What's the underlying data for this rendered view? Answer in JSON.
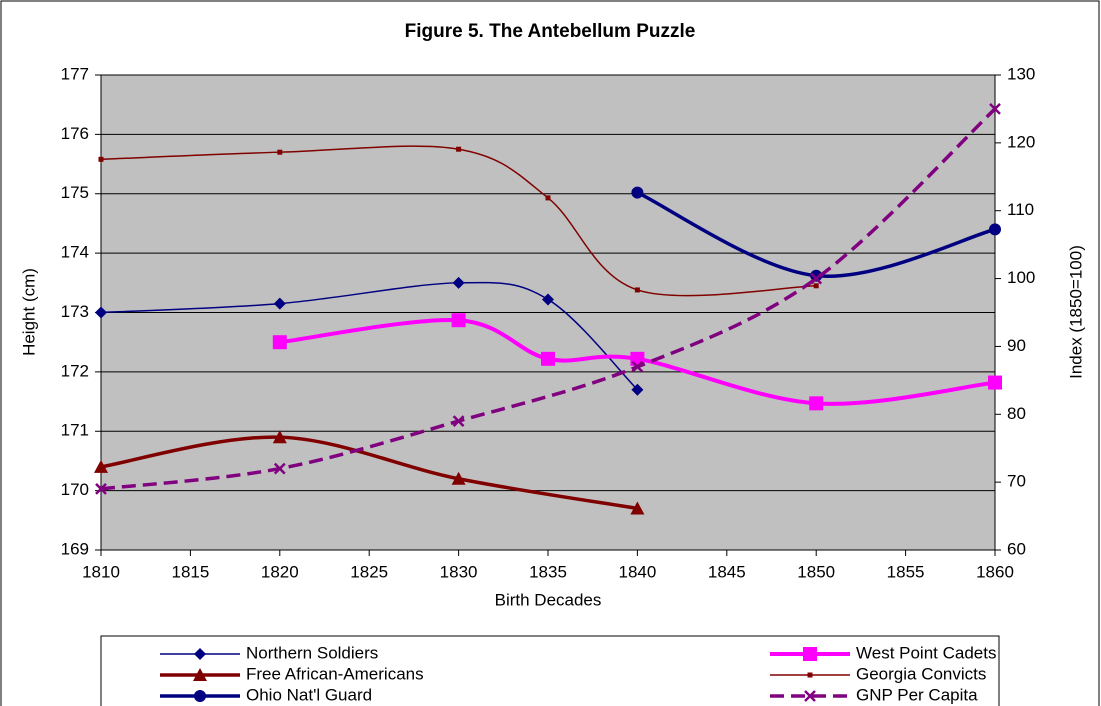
{
  "chart_data": {
    "type": "line",
    "title": "Figure 5. The Antebellum Puzzle",
    "xlabel": "Birth Decades",
    "ylabel": "Height (cm)",
    "y2label": "Index  (1850=100)",
    "xlim": [
      1810,
      1860
    ],
    "xticks": [
      1810,
      1815,
      1820,
      1825,
      1830,
      1835,
      1840,
      1845,
      1850,
      1855,
      1860
    ],
    "ylim": [
      169,
      177
    ],
    "yticks": [
      169,
      170,
      171,
      172,
      173,
      174,
      175,
      176,
      177
    ],
    "y2lim": [
      60,
      130
    ],
    "y2ticks": [
      60,
      70,
      80,
      90,
      100,
      110,
      120,
      130
    ],
    "grid": true,
    "legend": "bottom",
    "series": [
      {
        "name": "Northern Soldiers",
        "color": "#000080",
        "marker": "diamond",
        "width": 1.5,
        "x": [
          1810,
          1820,
          1830,
          1835,
          1840
        ],
        "values": [
          173.0,
          173.15,
          173.5,
          173.22,
          171.7
        ]
      },
      {
        "name": "West Point Cadets",
        "color": "#ff00ff",
        "marker": "square",
        "width": 4,
        "x": [
          1820,
          1830,
          1835,
          1840,
          1850,
          1860
        ],
        "values": [
          172.5,
          172.87,
          172.22,
          172.22,
          171.47,
          171.82
        ]
      },
      {
        "name": "Free African-Americans",
        "color": "#800000",
        "marker": "triangle",
        "width": 3.5,
        "x": [
          1810,
          1820,
          1830,
          1840
        ],
        "values": [
          170.4,
          170.9,
          170.2,
          169.7
        ]
      },
      {
        "name": "Georgia Convicts",
        "color": "#800000",
        "marker": "small",
        "width": 1.5,
        "x": [
          1810,
          1820,
          1830,
          1835,
          1840,
          1850
        ],
        "values": [
          175.58,
          175.7,
          175.75,
          174.93,
          173.38,
          173.45
        ]
      },
      {
        "name": "Ohio Nat'l Guard",
        "color": "#000080",
        "marker": "circle",
        "width": 3.5,
        "x": [
          1840,
          1850,
          1860
        ],
        "values": [
          175.02,
          173.62,
          174.4
        ]
      },
      {
        "name": "GNP Per Capita",
        "color": "#800080",
        "marker": "x",
        "width": 3.5,
        "dash": true,
        "axis": "y2",
        "x": [
          1810,
          1820,
          1830,
          1840,
          1850,
          1860
        ],
        "values": [
          69,
          72,
          79,
          87,
          100,
          125
        ]
      }
    ]
  }
}
